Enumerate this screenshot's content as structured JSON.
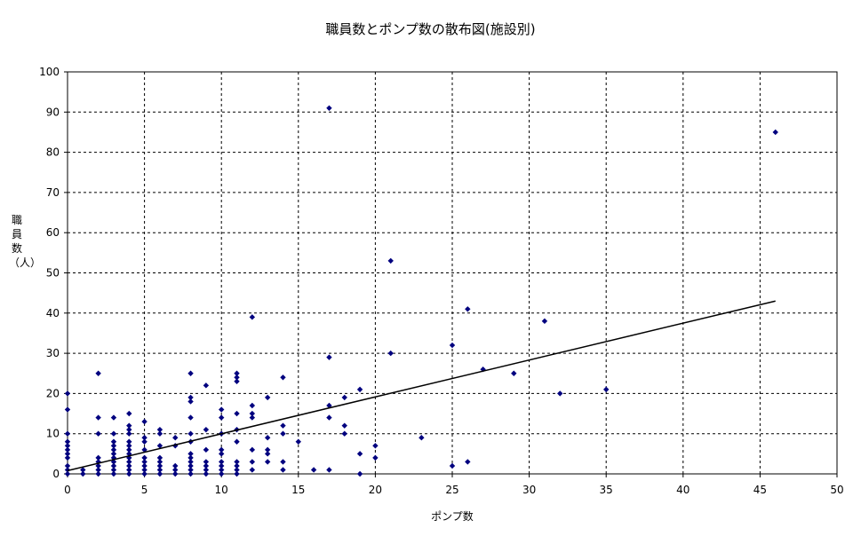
{
  "chart_data": {
    "type": "scatter",
    "title": "職員数とポンプ数の散布図(施設別)",
    "xlabel": "ポンプ数",
    "ylabel": "職員数（人）",
    "xlim": [
      0,
      50
    ],
    "ylim": [
      0,
      100
    ],
    "xticks": [
      0,
      5,
      10,
      15,
      20,
      25,
      30,
      35,
      40,
      45,
      50
    ],
    "yticks": [
      0,
      10,
      20,
      30,
      40,
      50,
      60,
      70,
      80,
      90,
      100
    ],
    "grid": true,
    "marker_color": "#00007f",
    "trendline": {
      "x": [
        0,
        46
      ],
      "y": [
        0.8,
        43
      ]
    },
    "points": [
      [
        0,
        0
      ],
      [
        0,
        1
      ],
      [
        0,
        2
      ],
      [
        0,
        4
      ],
      [
        0,
        5
      ],
      [
        0,
        6
      ],
      [
        0,
        7
      ],
      [
        0,
        8
      ],
      [
        0,
        10
      ],
      [
        0,
        16
      ],
      [
        0,
        20
      ],
      [
        1,
        0
      ],
      [
        1,
        1
      ],
      [
        2,
        0
      ],
      [
        2,
        1
      ],
      [
        2,
        2
      ],
      [
        2,
        3
      ],
      [
        2,
        4
      ],
      [
        2,
        10
      ],
      [
        2,
        14
      ],
      [
        2,
        25
      ],
      [
        3,
        0
      ],
      [
        3,
        1
      ],
      [
        3,
        2
      ],
      [
        3,
        3
      ],
      [
        3,
        4
      ],
      [
        3,
        5
      ],
      [
        3,
        6
      ],
      [
        3,
        7
      ],
      [
        3,
        8
      ],
      [
        3,
        10
      ],
      [
        3,
        14
      ],
      [
        4,
        0
      ],
      [
        4,
        1
      ],
      [
        4,
        2
      ],
      [
        4,
        3
      ],
      [
        4,
        4
      ],
      [
        4,
        5
      ],
      [
        4,
        6
      ],
      [
        4,
        7
      ],
      [
        4,
        8
      ],
      [
        4,
        10
      ],
      [
        4,
        11
      ],
      [
        4,
        12
      ],
      [
        4,
        15
      ],
      [
        5,
        0
      ],
      [
        5,
        1
      ],
      [
        5,
        2
      ],
      [
        5,
        3
      ],
      [
        5,
        4
      ],
      [
        5,
        6
      ],
      [
        5,
        8
      ],
      [
        5,
        9
      ],
      [
        5,
        13
      ],
      [
        6,
        0
      ],
      [
        6,
        1
      ],
      [
        6,
        2
      ],
      [
        6,
        3
      ],
      [
        6,
        4
      ],
      [
        6,
        7
      ],
      [
        6,
        10
      ],
      [
        6,
        11
      ],
      [
        7,
        0
      ],
      [
        7,
        1
      ],
      [
        7,
        2
      ],
      [
        7,
        7
      ],
      [
        7,
        9
      ],
      [
        8,
        0
      ],
      [
        8,
        1
      ],
      [
        8,
        2
      ],
      [
        8,
        3
      ],
      [
        8,
        4
      ],
      [
        8,
        5
      ],
      [
        8,
        8
      ],
      [
        8,
        10
      ],
      [
        8,
        14
      ],
      [
        8,
        18
      ],
      [
        8,
        19
      ],
      [
        8,
        25
      ],
      [
        9,
        0
      ],
      [
        9,
        1
      ],
      [
        9,
        2
      ],
      [
        9,
        3
      ],
      [
        9,
        6
      ],
      [
        9,
        11
      ],
      [
        9,
        22
      ],
      [
        10,
        0
      ],
      [
        10,
        1
      ],
      [
        10,
        2
      ],
      [
        10,
        3
      ],
      [
        10,
        5
      ],
      [
        10,
        6
      ],
      [
        10,
        10
      ],
      [
        10,
        14
      ],
      [
        10,
        16
      ],
      [
        11,
        0
      ],
      [
        11,
        1
      ],
      [
        11,
        2
      ],
      [
        11,
        3
      ],
      [
        11,
        8
      ],
      [
        11,
        11
      ],
      [
        11,
        15
      ],
      [
        11,
        23
      ],
      [
        11,
        24
      ],
      [
        11,
        25
      ],
      [
        12,
        1
      ],
      [
        12,
        3
      ],
      [
        12,
        6
      ],
      [
        12,
        14
      ],
      [
        12,
        15
      ],
      [
        12,
        17
      ],
      [
        12,
        39
      ],
      [
        13,
        3
      ],
      [
        13,
        5
      ],
      [
        13,
        6
      ],
      [
        13,
        9
      ],
      [
        13,
        19
      ],
      [
        14,
        1
      ],
      [
        14,
        3
      ],
      [
        14,
        10
      ],
      [
        14,
        12
      ],
      [
        14,
        24
      ],
      [
        15,
        8
      ],
      [
        16,
        1
      ],
      [
        17,
        1
      ],
      [
        17,
        14
      ],
      [
        17,
        17
      ],
      [
        17,
        29
      ],
      [
        17,
        91
      ],
      [
        18,
        10
      ],
      [
        18,
        12
      ],
      [
        18,
        19
      ],
      [
        19,
        0
      ],
      [
        19,
        5
      ],
      [
        19,
        21
      ],
      [
        20,
        4
      ],
      [
        20,
        7
      ],
      [
        21,
        30
      ],
      [
        21,
        53
      ],
      [
        23,
        9
      ],
      [
        25,
        2
      ],
      [
        25,
        32
      ],
      [
        26,
        3
      ],
      [
        26,
        41
      ],
      [
        27,
        26
      ],
      [
        29,
        25
      ],
      [
        31,
        38
      ],
      [
        32,
        20
      ],
      [
        35,
        21
      ],
      [
        46,
        85
      ]
    ]
  }
}
